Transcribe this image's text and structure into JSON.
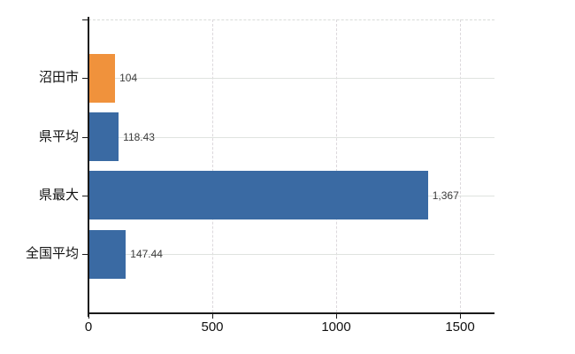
{
  "chart_data": {
    "type": "bar",
    "orientation": "horizontal",
    "title": "",
    "categories": [
      "沼田市",
      "県平均",
      "県最大",
      "全国平均"
    ],
    "values": [
      104,
      118.43,
      1367,
      147.44
    ],
    "value_labels": [
      "104",
      "118.43",
      "1,367",
      "147.44"
    ],
    "series": [
      {
        "name": "",
        "values": [
          104,
          118.43,
          1367,
          147.44
        ]
      }
    ],
    "highlight_index": 0,
    "x_tick_labels": [
      "0",
      "500",
      "1000",
      "1500"
    ],
    "x_tick_values": [
      0,
      500,
      1000,
      1500
    ],
    "xlim": [
      0,
      1640
    ],
    "grid": true,
    "legend": "none",
    "colors": {
      "highlight_bar": "#f0923c",
      "default_bar": "#3a6aa3",
      "axis": "#1a1a1a",
      "gridline_h": "#dfe3df",
      "gridline_v": "#dcd8dc",
      "value_label": "#3c3c3c",
      "category_label": "#111111",
      "background": "#ffffff"
    }
  }
}
